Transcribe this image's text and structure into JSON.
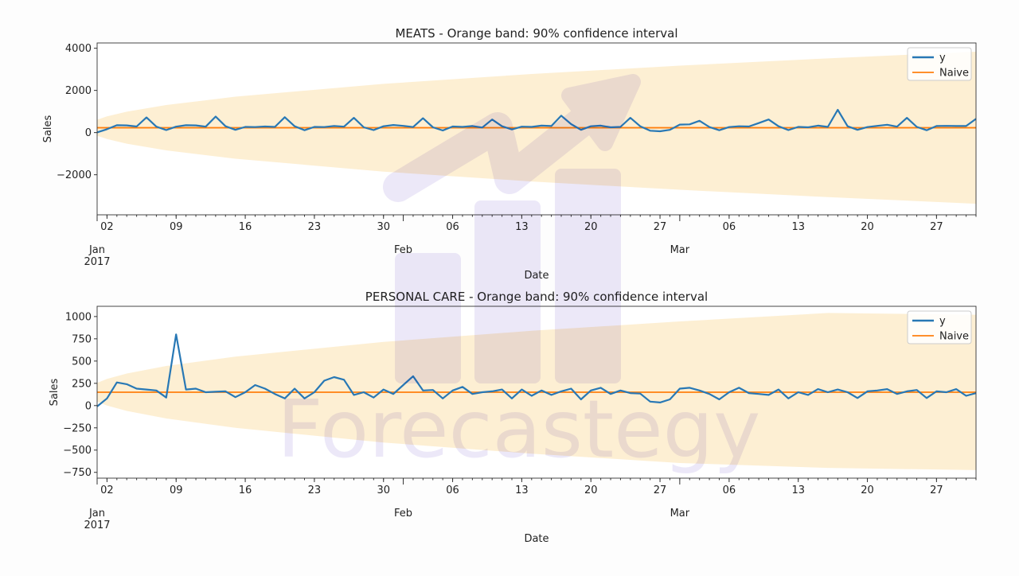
{
  "watermark": "Forecastegy",
  "colors": {
    "y": "#2878b5",
    "naive": "#ff7f0e",
    "band": "#fdebc8",
    "watermark": "#d9d2f2"
  },
  "chart_data": [
    {
      "type": "line",
      "title": "MEATS - Orange band: 90% confidence interval",
      "xlabel": "Date",
      "ylabel": "Sales",
      "x_start": "2017-01-01",
      "xlim": [
        "2017-01-01",
        "2017-03-31"
      ],
      "ylim": [
        -3900,
        4250
      ],
      "yticks": [
        {
          "v": 4000,
          "label": "4000"
        },
        {
          "v": 2000,
          "label": "2000"
        },
        {
          "v": 0,
          "label": "0"
        },
        {
          "v": -2000,
          "label": "−2000"
        }
      ],
      "xticks": [
        {
          "date": "2017-01-02",
          "label": "02"
        },
        {
          "date": "2017-01-09",
          "label": "09"
        },
        {
          "date": "2017-01-16",
          "label": "16"
        },
        {
          "date": "2017-01-23",
          "label": "23"
        },
        {
          "date": "2017-01-30",
          "label": "30"
        },
        {
          "date": "2017-02-06",
          "label": "06"
        },
        {
          "date": "2017-02-13",
          "label": "13"
        },
        {
          "date": "2017-02-20",
          "label": "20"
        },
        {
          "date": "2017-02-27",
          "label": "27"
        },
        {
          "date": "2017-03-06",
          "label": "06"
        },
        {
          "date": "2017-03-13",
          "label": "13"
        },
        {
          "date": "2017-03-20",
          "label": "20"
        },
        {
          "date": "2017-03-27",
          "label": "27"
        }
      ],
      "month_labels": [
        {
          "date": "2017-01-01",
          "label": "Jan",
          "sub": "2017"
        },
        {
          "date": "2017-02-01",
          "label": "Feb",
          "sub": ""
        },
        {
          "date": "2017-03-01",
          "label": "Mar",
          "sub": ""
        }
      ],
      "legend": {
        "placement": "top-right",
        "entries": [
          "y",
          "Naive"
        ]
      },
      "series": [
        {
          "name": "y",
          "values": [
            10,
            160,
            350,
            340,
            290,
            720,
            280,
            120,
            280,
            350,
            340,
            280,
            760,
            300,
            130,
            270,
            260,
            290,
            270,
            730,
            300,
            110,
            270,
            260,
            310,
            280,
            700,
            250,
            120,
            300,
            360,
            320,
            260,
            680,
            250,
            100,
            290,
            270,
            310,
            240,
            620,
            300,
            150,
            280,
            270,
            330,
            310,
            800,
            400,
            130,
            300,
            330,
            250,
            270,
            700,
            300,
            90,
            60,
            130,
            380,
            390,
            560,
            260,
            110,
            260,
            300,
            290,
            450,
            620,
            300,
            120,
            270,
            250,
            330,
            270,
            1080,
            300,
            130,
            260,
            320,
            370,
            280,
            700,
            270,
            110,
            310,
            320,
            310,
            310,
            650
          ]
        },
        {
          "name": "Naive",
          "value": 230
        }
      ],
      "band": {
        "label": "90% confidence interval",
        "days": [
          1,
          2,
          4,
          8,
          15,
          30,
          45,
          60,
          75,
          90
        ],
        "upper": [
          610,
          767,
          990,
          1305,
          1702,
          2311,
          2779,
          3173,
          3521,
          3835
        ],
        "lower": [
          -150,
          -307,
          -530,
          -845,
          -1242,
          -1851,
          -2319,
          -2713,
          -3061,
          -3375
        ]
      }
    },
    {
      "type": "line",
      "title": "PERSONAL CARE - Orange band: 90% confidence interval",
      "xlabel": "Date",
      "ylabel": "Sales",
      "x_start": "2017-01-01",
      "xlim": [
        "2017-01-01",
        "2017-03-31"
      ],
      "ylim": [
        -815,
        1115
      ],
      "yticks": [
        {
          "v": 1000,
          "label": "1000"
        },
        {
          "v": 750,
          "label": "750"
        },
        {
          "v": 500,
          "label": "500"
        },
        {
          "v": 250,
          "label": "250"
        },
        {
          "v": 0,
          "label": "0"
        },
        {
          "v": -250,
          "label": "−250"
        },
        {
          "v": -500,
          "label": "−500"
        },
        {
          "v": -750,
          "label": "−750"
        }
      ],
      "xticks": [
        {
          "date": "2017-01-02",
          "label": "02"
        },
        {
          "date": "2017-01-09",
          "label": "09"
        },
        {
          "date": "2017-01-16",
          "label": "16"
        },
        {
          "date": "2017-01-23",
          "label": "23"
        },
        {
          "date": "2017-01-30",
          "label": "30"
        },
        {
          "date": "2017-02-06",
          "label": "06"
        },
        {
          "date": "2017-02-13",
          "label": "13"
        },
        {
          "date": "2017-02-20",
          "label": "20"
        },
        {
          "date": "2017-02-27",
          "label": "27"
        },
        {
          "date": "2017-03-06",
          "label": "06"
        },
        {
          "date": "2017-03-13",
          "label": "13"
        },
        {
          "date": "2017-03-20",
          "label": "20"
        },
        {
          "date": "2017-03-27",
          "label": "27"
        }
      ],
      "month_labels": [
        {
          "date": "2017-01-01",
          "label": "Jan",
          "sub": "2017"
        },
        {
          "date": "2017-02-01",
          "label": "Feb",
          "sub": ""
        },
        {
          "date": "2017-03-01",
          "label": "Mar",
          "sub": ""
        }
      ],
      "legend": {
        "placement": "top-right",
        "entries": [
          "y",
          "Naive"
        ]
      },
      "series": [
        {
          "name": "y",
          "values": [
            -10,
            80,
            260,
            240,
            190,
            180,
            170,
            90,
            800,
            180,
            190,
            150,
            155,
            160,
            95,
            150,
            230,
            190,
            130,
            80,
            190,
            80,
            150,
            280,
            320,
            290,
            120,
            150,
            90,
            180,
            130,
            230,
            330,
            170,
            175,
            80,
            170,
            210,
            130,
            150,
            160,
            180,
            80,
            180,
            110,
            170,
            120,
            160,
            190,
            70,
            170,
            200,
            130,
            170,
            140,
            135,
            45,
            35,
            70,
            190,
            200,
            170,
            130,
            70,
            150,
            200,
            140,
            130,
            120,
            180,
            80,
            150,
            120,
            185,
            150,
            180,
            150,
            85,
            160,
            170,
            185,
            130,
            160,
            175,
            85,
            160,
            150,
            185,
            110,
            140
          ]
        },
        {
          "name": "Naive",
          "value": 150
        }
      ],
      "band": {
        "label": "90% confidence interval",
        "days": [
          1,
          2,
          4,
          8,
          15,
          30,
          45,
          60,
          75,
          90
        ],
        "upper": [
          255,
          300,
          360,
          445,
          550,
          715,
          840,
          945,
          1040,
          1020
        ],
        "lower": [
          45,
          0,
          -60,
          -145,
          -250,
          -415,
          -540,
          -645,
          -700,
          -725
        ]
      }
    }
  ]
}
